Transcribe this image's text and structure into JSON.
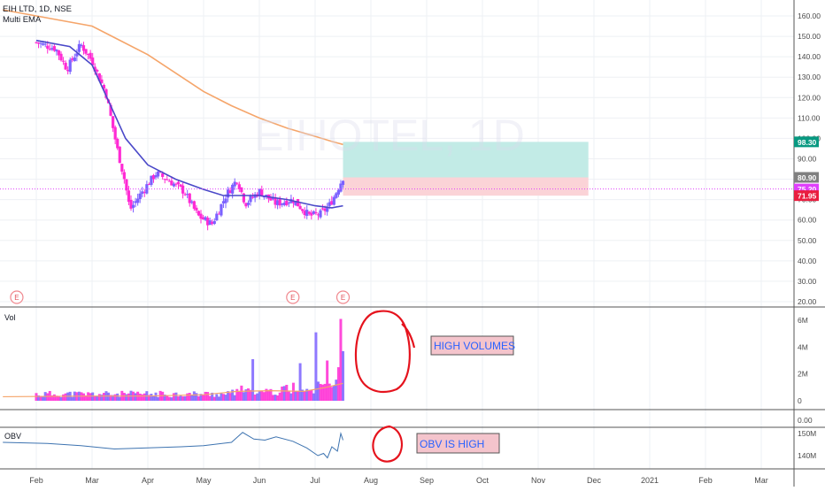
{
  "header": {
    "symbol_line": "EIH LTD, 1D, NSE",
    "indicator": "Multi EMA",
    "watermark": "EIHOTEL, 1D"
  },
  "colors": {
    "up": "#7b61ff",
    "down": "#ff2ad4",
    "ema_fast": "#4a48c8",
    "ema_slow": "#f5a56a",
    "target_zone": "#c2ebe6",
    "stop_zone": "#fbd3d7",
    "obv_line": "#3d73b0",
    "annotation": "#e5131d"
  },
  "chart_data": [
    {
      "type": "candlestick",
      "title": "EIH LTD, 1D, NSE",
      "ylim": [
        20,
        165
      ],
      "y_ticks": [
        "160.00",
        "150.00",
        "140.00",
        "130.00",
        "120.00",
        "110.00",
        "100.00",
        "90.00",
        "80.00",
        "70.00",
        "60.00",
        "50.00",
        "40.00",
        "30.00",
        "20.00"
      ],
      "x_ticks": [
        "Feb",
        "Mar",
        "Apr",
        "May",
        "Jun",
        "Jul",
        "Aug",
        "Sep",
        "Oct",
        "Nov",
        "Dec",
        "2021",
        "Feb",
        "Mar"
      ],
      "anchors": [
        {
          "m": 0,
          "c": 147
        },
        {
          "m": 0.35,
          "c": 144
        },
        {
          "m": 0.55,
          "c": 134
        },
        {
          "m": 0.8,
          "c": 146
        },
        {
          "m": 1.0,
          "c": 138
        },
        {
          "m": 1.25,
          "c": 122
        },
        {
          "m": 1.45,
          "c": 95
        },
        {
          "m": 1.58,
          "c": 80
        },
        {
          "m": 1.68,
          "c": 65
        },
        {
          "m": 1.9,
          "c": 74
        },
        {
          "m": 2.15,
          "c": 83
        },
        {
          "m": 2.4,
          "c": 79
        },
        {
          "m": 2.65,
          "c": 74
        },
        {
          "m": 2.9,
          "c": 62
        },
        {
          "m": 3.15,
          "c": 58
        },
        {
          "m": 3.4,
          "c": 72
        },
        {
          "m": 3.6,
          "c": 80
        },
        {
          "m": 3.75,
          "c": 68
        },
        {
          "m": 4.0,
          "c": 74
        },
        {
          "m": 4.3,
          "c": 68
        },
        {
          "m": 4.6,
          "c": 70
        },
        {
          "m": 4.9,
          "c": 62
        },
        {
          "m": 5.1,
          "c": 63
        },
        {
          "m": 5.25,
          "c": 67
        },
        {
          "m": 5.35,
          "c": 72
        },
        {
          "m": 5.5,
          "c": 80.9
        }
      ],
      "series": [
        {
          "name": "EMA fast",
          "points": [
            [
              0,
              148
            ],
            [
              0.6,
              145
            ],
            [
              1.0,
              136
            ],
            [
              1.3,
              118
            ],
            [
              1.6,
              100
            ],
            [
              2.0,
              87
            ],
            [
              2.5,
              80
            ],
            [
              3.0,
              75
            ],
            [
              3.35,
              72
            ],
            [
              4.0,
              72
            ],
            [
              4.5,
              70
            ],
            [
              5.0,
              67
            ],
            [
              5.3,
              66
            ],
            [
              5.5,
              67
            ]
          ]
        },
        {
          "name": "EMA slow",
          "points": [
            [
              -0.6,
              163
            ],
            [
              0,
              160
            ],
            [
              1.0,
              155
            ],
            [
              2.0,
              141
            ],
            [
              3.0,
              123
            ],
            [
              3.5,
              116
            ],
            [
              4.0,
              110
            ],
            [
              4.5,
              105
            ],
            [
              5.0,
              101
            ],
            [
              5.3,
              98.5
            ],
            [
              5.5,
              97
            ]
          ]
        }
      ],
      "position_tool": {
        "from_m": 5.5,
        "to_m": 9.9,
        "target": 98.3,
        "entry": 80.9,
        "stop": 71.95
      },
      "price_labels": [
        {
          "value": "98.30",
          "price": 98.3,
          "color": "#089981"
        },
        {
          "value": "80.90",
          "price": 80.9,
          "color": "#808080"
        },
        {
          "value": "75.20",
          "price": 75.2,
          "color": "#e040fb"
        },
        {
          "value": "71.95",
          "price": 71.95,
          "color": "#e91e3f"
        }
      ],
      "current_price": 75.2,
      "earnings_markers": [
        {
          "m": -0.35,
          "label": "E"
        },
        {
          "m": 4.6,
          "label": "E"
        },
        {
          "m": 5.5,
          "label": "E"
        }
      ]
    },
    {
      "type": "bar",
      "title": "Vol",
      "ylim": [
        0,
        6.5
      ],
      "y_ticks": [
        "6M",
        "4M",
        "2M",
        "0"
      ],
      "tick_values": [
        6,
        4,
        2,
        0
      ],
      "annotations": {
        "spikes": [
          [
            5.0,
            5.1
          ],
          [
            5.4,
            2.5
          ],
          [
            5.45,
            6.1
          ],
          [
            5.49,
            3.7
          ],
          [
            3.9,
            3.1
          ],
          [
            4.75,
            2.8
          ],
          [
            5.2,
            3.0
          ]
        ]
      }
    },
    {
      "type": "line",
      "title": "OBV",
      "ylim": [
        130,
        152
      ],
      "y_ticks": [
        "150M",
        "140M"
      ],
      "tick_values": [
        150,
        140
      ],
      "points": [
        [
          -0.6,
          146
        ],
        [
          0.2,
          145.5
        ],
        [
          0.8,
          144.5
        ],
        [
          1.4,
          143
        ],
        [
          2.0,
          143.5
        ],
        [
          2.6,
          144
        ],
        [
          3.0,
          144.5
        ],
        [
          3.5,
          146
        ],
        [
          3.7,
          150.5
        ],
        [
          3.9,
          147.5
        ],
        [
          4.1,
          147
        ],
        [
          4.3,
          148.5
        ],
        [
          4.6,
          146.5
        ],
        [
          4.85,
          143.5
        ],
        [
          5.05,
          140
        ],
        [
          5.15,
          141
        ],
        [
          5.22,
          139
        ],
        [
          5.3,
          144
        ],
        [
          5.4,
          142
        ],
        [
          5.46,
          150
        ],
        [
          5.5,
          147
        ]
      ]
    }
  ],
  "mini_pane": {
    "tick_values": [
      0.0
    ]
  },
  "annotations": {
    "volume_label": "HIGH VOLUMES",
    "obv_label": "OBV IS HIGH"
  }
}
